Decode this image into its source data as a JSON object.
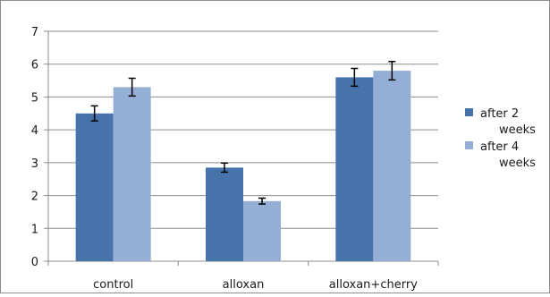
{
  "chart_data": {
    "type": "bar",
    "categories": [
      "control",
      "alloxan",
      "alloxan+cherry"
    ],
    "series": [
      {
        "name": "after 2 weeks",
        "legend_lines": [
          "after 2",
          "weeks"
        ],
        "color": "#4674AA",
        "values": [
          4.5,
          2.85,
          5.6
        ],
        "errors": [
          0.23,
          0.14,
          0.27
        ]
      },
      {
        "name": "after 4 weeks",
        "legend_lines": [
          "after 4",
          "weeks"
        ],
        "color": "#95AED6",
        "values": [
          5.3,
          1.83,
          5.8
        ],
        "errors": [
          0.27,
          0.09,
          0.28
        ]
      }
    ],
    "title": "",
    "xlabel": "",
    "ylabel": "",
    "ylim": [
      0,
      7
    ],
    "yticks": [
      0,
      1,
      2,
      3,
      4,
      5,
      6,
      7
    ],
    "grid": true,
    "legend_position": "right",
    "error_bars": true
  }
}
